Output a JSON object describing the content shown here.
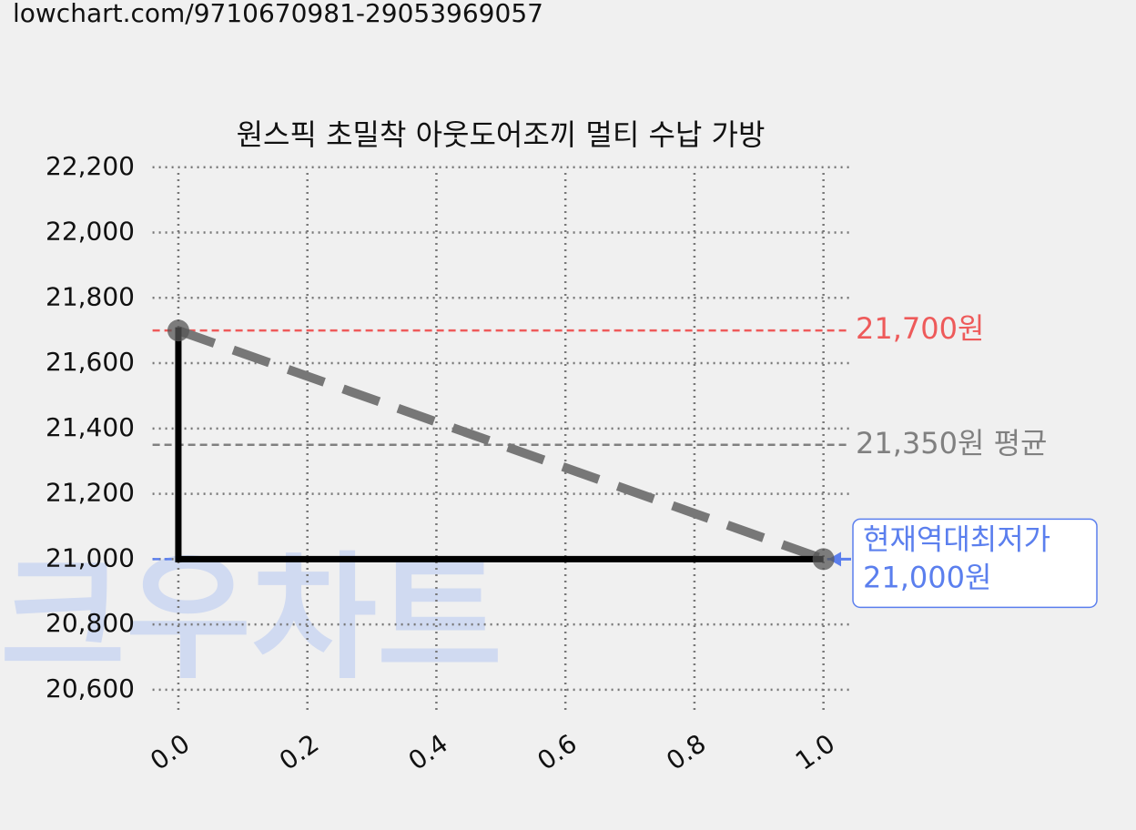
{
  "header": {
    "url": "lowchart.com/9710670981-29053969057"
  },
  "chart_data": {
    "type": "line",
    "title": "원스픽 초밀착 아웃도어조끼 멀티 수납 가방",
    "watermark": "크우차트",
    "x": [
      0,
      1
    ],
    "values": [
      21700,
      21000
    ],
    "step": true,
    "line_color": "#000000",
    "connector_color": "#777777",
    "marker_color": "#555555",
    "xlim": [
      -0.04,
      1.04
    ],
    "ylim": [
      20530,
      22230
    ],
    "xticks": [
      {
        "value": 0,
        "label": "0.0"
      },
      {
        "value": 0.2,
        "label": "0.2"
      },
      {
        "value": 0.4,
        "label": "0.4"
      },
      {
        "value": 0.6,
        "label": "0.6"
      },
      {
        "value": 0.8,
        "label": "0.8"
      },
      {
        "value": 1,
        "label": "1.0"
      }
    ],
    "yticks": [
      {
        "value": 20600,
        "label": "20,600"
      },
      {
        "value": 20800,
        "label": "20,800"
      },
      {
        "value": 21000,
        "label": "21,000"
      },
      {
        "value": 21200,
        "label": "21,200"
      },
      {
        "value": 21400,
        "label": "21,400"
      },
      {
        "value": 21600,
        "label": "21,600"
      },
      {
        "value": 21800,
        "label": "21,800"
      },
      {
        "value": 22000,
        "label": "22,000"
      },
      {
        "value": 22200,
        "label": "22,200"
      }
    ],
    "grid": true,
    "hlines": [
      {
        "value": 21700,
        "label": [
          "21,700원"
        ],
        "color": "#ee5a5a"
      },
      {
        "value": 21350,
        "label": [
          "21,350원 평균"
        ],
        "color": "#808080"
      },
      {
        "value": 21000,
        "label": [
          "현재역대최저가",
          "21,000원"
        ],
        "color": "#5b7fee",
        "boxed": true
      }
    ]
  }
}
